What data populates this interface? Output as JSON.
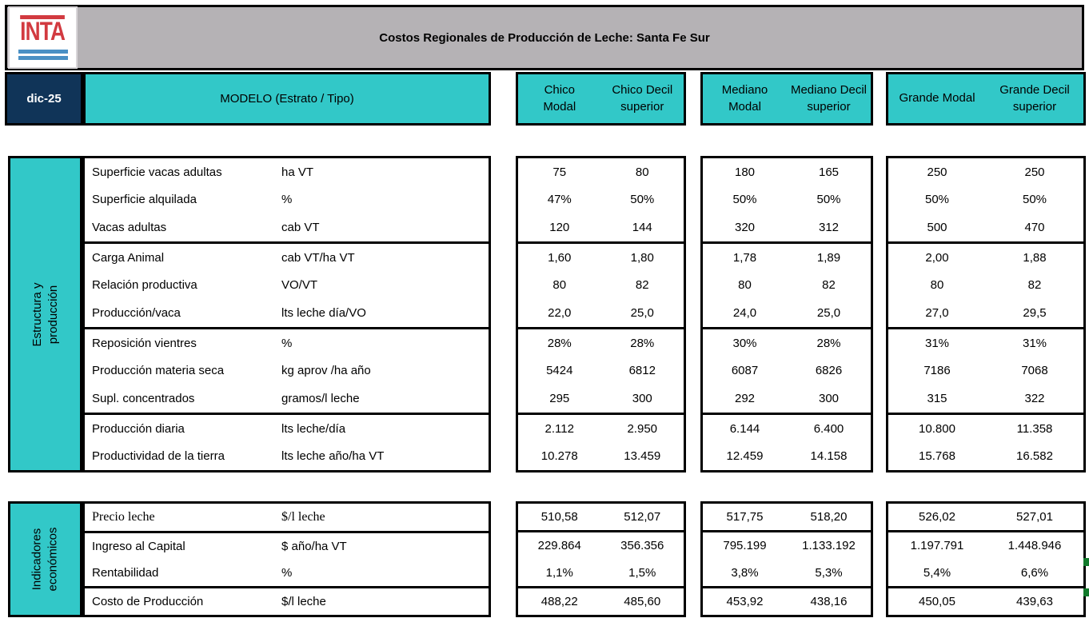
{
  "colors": {
    "teal": "#32C8C8",
    "navy": "#103458",
    "banner_gray": "#B5B2B5",
    "border_black": "#000000",
    "logo_red": "#D23A40",
    "logo_blue": "#4A90C4",
    "marker_green": "#117A2B"
  },
  "header": {
    "logo_text": "INTA",
    "title": "Costos Regionales de Producción de Leche: Santa Fe Sur",
    "date_label": "dic-25",
    "model_label": "MODELO (Estrato / Tipo)",
    "groups": [
      {
        "name": "chico",
        "cols": [
          {
            "text": "Chico\nModal"
          },
          {
            "text": "Chico Decil\nsuperior"
          }
        ]
      },
      {
        "name": "mediano",
        "cols": [
          {
            "text": "Mediano\nModal"
          },
          {
            "text": "Mediano Decil\nsuperior"
          }
        ]
      },
      {
        "name": "grande",
        "cols": [
          {
            "text": "Grande Modal"
          },
          {
            "text": "Grande Decil\nsuperior"
          }
        ]
      }
    ]
  },
  "column_order": [
    "Chico Modal",
    "Chico Decil superior",
    "Mediano Modal",
    "Mediano Decil superior",
    "Grande Modal",
    "Grande Decil superior"
  ],
  "sections": [
    {
      "sidebar_label": "Estructura y producción",
      "subblocks": [
        {
          "rows": [
            {
              "label": "Superficie vacas adultas",
              "unit": "ha VT",
              "values": [
                "75",
                "80",
                "180",
                "165",
                "250",
                "250"
              ]
            },
            {
              "label": "Superficie alquilada",
              "unit": "%",
              "values": [
                "47%",
                "50%",
                "50%",
                "50%",
                "50%",
                "50%"
              ]
            },
            {
              "label": "Vacas adultas",
              "unit": "cab VT",
              "values": [
                "120",
                "144",
                "320",
                "312",
                "500",
                "470"
              ]
            }
          ]
        },
        {
          "rows": [
            {
              "label": "Carga Animal",
              "unit": "cab VT/ha VT",
              "values": [
                "1,60",
                "1,80",
                "1,78",
                "1,89",
                "2,00",
                "1,88"
              ]
            },
            {
              "label": "Relación productiva",
              "unit": "VO/VT",
              "values": [
                "80",
                "82",
                "80",
                "82",
                "80",
                "82"
              ]
            },
            {
              "label": "Producción/vaca",
              "unit": "lts leche día/VO",
              "values": [
                "22,0",
                "25,0",
                "24,0",
                "25,0",
                "27,0",
                "29,5"
              ]
            }
          ]
        },
        {
          "rows": [
            {
              "label": "Reposición vientres",
              "unit": "%",
              "values": [
                "28%",
                "28%",
                "30%",
                "28%",
                "31%",
                "31%"
              ]
            },
            {
              "label": "Producción materia seca",
              "unit": "kg aprov /ha año",
              "values": [
                "5424",
                "6812",
                "6087",
                "6826",
                "7186",
                "7068"
              ]
            },
            {
              "label": "Supl. concentrados",
              "unit": "gramos/l leche",
              "values": [
                "295",
                "300",
                "292",
                "300",
                "315",
                "322"
              ]
            }
          ]
        },
        {
          "rows": [
            {
              "label": "Producción diaria",
              "unit": "lts leche/día",
              "values": [
                "2.112",
                "2.950",
                "6.144",
                "6.400",
                "10.800",
                "11.358"
              ]
            },
            {
              "label": "Productividad de la tierra",
              "unit": "lts leche año/ha VT",
              "values": [
                "10.278",
                "13.459",
                "12.459",
                "14.158",
                "15.768",
                "16.582"
              ]
            }
          ]
        }
      ]
    },
    {
      "sidebar_label": "Indicadores\neconómicos",
      "subblocks": [
        {
          "rows": [
            {
              "label": "Precio leche",
              "unit": "$/l leche",
              "serif": true,
              "values": [
                "510,58",
                "512,07",
                "517,75",
                "518,20",
                "526,02",
                "527,01"
              ]
            }
          ]
        },
        {
          "rows": [
            {
              "label": "Ingreso al Capital",
              "unit": "$ año/ha VT",
              "values": [
                "229.864",
                "356.356",
                "795.199",
                "1.133.192",
                "1.197.791",
                "1.448.946"
              ]
            },
            {
              "label": "Rentabilidad",
              "unit": "%",
              "values": [
                "1,1%",
                "1,5%",
                "3,8%",
                "5,3%",
                "5,4%",
                "6,6%"
              ]
            }
          ]
        },
        {
          "rows": [
            {
              "label": "Costo de Producción",
              "unit": "$/l leche",
              "values": [
                "488,22",
                "485,60",
                "453,92",
                "438,16",
                "450,05",
                "439,63"
              ]
            }
          ]
        }
      ]
    }
  ],
  "layout_note_markers": [
    "",
    ""
  ]
}
